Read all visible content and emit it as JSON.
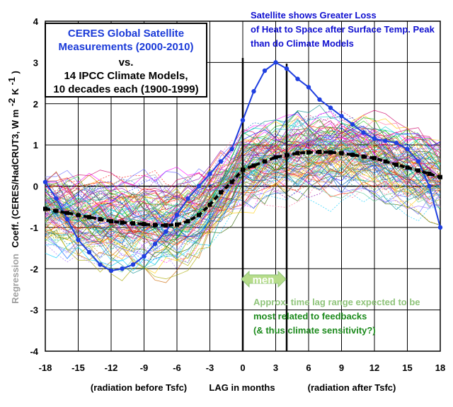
{
  "chart_data": {
    "type": "line",
    "title": "",
    "xlabel": "LAG in months",
    "xlabel_left": "(radiation before Tsfc)",
    "xlabel_right": "(radiation after Tsfc)",
    "ylabel_prefix": "Regression",
    "ylabel_main": "Coeff. (CERES/HadCRUT3, W m",
    "ylabel_sup1": "-2",
    "ylabel_mid": " K",
    "ylabel_sup2": "-1",
    "ylabel_end": ")",
    "xlim": [
      -18,
      18
    ],
    "ylim": [
      -4,
      4
    ],
    "xticks": [
      -18,
      -15,
      -12,
      -9,
      -6,
      -3,
      0,
      3,
      6,
      9,
      12,
      15,
      18
    ],
    "yticks": [
      -4,
      -3,
      -2,
      -1,
      0,
      1,
      2,
      3,
      4
    ],
    "grid": true,
    "legend_box": {
      "line1": "CERES Global Satellite",
      "line2": "Measurements (2000-2010)",
      "line3": "vs.",
      "line4": "14 IPCC Climate Models,",
      "line5": "10 decades each (1900-1999)"
    },
    "annotation_top": {
      "line1": "Satellite shows Greater Loss",
      "line2": "of Heat to Space after Surface Temp. Peak",
      "line3": "than do Climate Models"
    },
    "annotation_bottom": {
      "line1": "Approx. time lag range expected to be",
      "line2": "most related to feedbacks",
      "line3": "(& thus climate sensitivity?)"
    },
    "arrow_label": "men",
    "lag_range": [
      0,
      4
    ],
    "colors": {
      "satellite": "#1f3fe0",
      "model_mean": "#000000",
      "annotation_blue": "#1010d0",
      "annotation_green_light": "#8fc47a",
      "annotation_green_dark": "#1c8a1c",
      "arrow_fill": "#b6dc8a",
      "box_title": "#1a3ad8"
    },
    "series": [
      {
        "name": "",
        "role": "satellite",
        "x": [
          -18,
          -17,
          -16,
          -15,
          -14,
          -13,
          -12,
          -11,
          -10,
          -9,
          -8,
          -7,
          -6,
          -5,
          -4,
          -3,
          -2,
          -1,
          0,
          1,
          2,
          3,
          4,
          5,
          6,
          7,
          8,
          9,
          10,
          11,
          12,
          13,
          14,
          15,
          16,
          17,
          18
        ],
        "values": [
          0.1,
          -0.3,
          -0.8,
          -1.3,
          -1.6,
          -1.9,
          -2.05,
          -2.0,
          -1.9,
          -1.7,
          -1.4,
          -1.1,
          -0.7,
          -0.3,
          0.0,
          0.3,
          0.6,
          0.9,
          1.6,
          2.3,
          2.8,
          3.0,
          2.85,
          2.6,
          2.4,
          2.1,
          1.9,
          1.7,
          1.5,
          1.3,
          1.15,
          1.1,
          1.05,
          0.9,
          0.6,
          0.0,
          -1.0
        ]
      },
      {
        "name": "",
        "role": "model_mean",
        "x": [
          -18,
          -17,
          -16,
          -15,
          -14,
          -13,
          -12,
          -11,
          -10,
          -9,
          -8,
          -7,
          -6,
          -5,
          -4,
          -3,
          -2,
          -1,
          0,
          1,
          2,
          3,
          4,
          5,
          6,
          7,
          8,
          9,
          10,
          11,
          12,
          13,
          14,
          15,
          16,
          17,
          18
        ],
        "values": [
          -0.55,
          -0.6,
          -0.65,
          -0.7,
          -0.75,
          -0.8,
          -0.85,
          -0.88,
          -0.9,
          -0.92,
          -0.94,
          -0.95,
          -0.93,
          -0.85,
          -0.7,
          -0.45,
          -0.15,
          0.1,
          0.4,
          0.5,
          0.6,
          0.7,
          0.75,
          0.8,
          0.82,
          0.83,
          0.82,
          0.8,
          0.76,
          0.72,
          0.68,
          0.6,
          0.52,
          0.45,
          0.38,
          0.3,
          0.22
        ]
      }
    ]
  }
}
